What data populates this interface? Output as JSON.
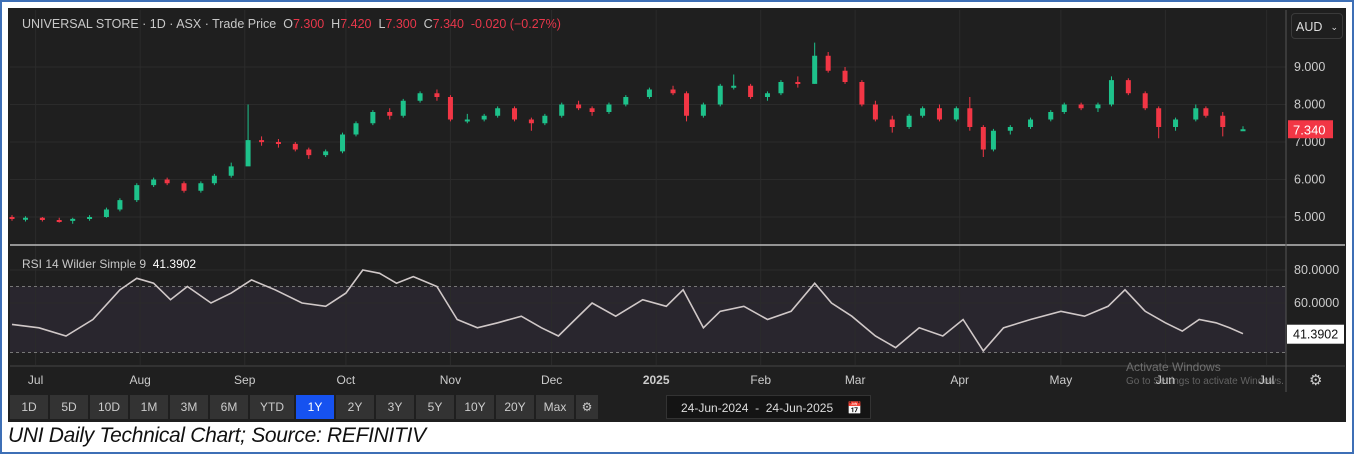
{
  "header": {
    "symbol": "UNIVERSAL STORE · 1D · ASX · Trade Price",
    "o_label": "O",
    "o": "7.300",
    "h_label": "H",
    "h": "7.420",
    "l_label": "L",
    "l": "7.300",
    "c_label": "C",
    "c": "7.340",
    "change": "-0.020 (−0.27%)"
  },
  "currency": "AUD",
  "rsi": {
    "label": "RSI 14 Wilder Simple 9",
    "value": "41.3902"
  },
  "colors": {
    "up": "#1ec28b",
    "down": "#f23645",
    "rsi_line": "#d0c8c8",
    "active": "#1652f0",
    "background": "#1f1f1f"
  },
  "toolbar": {
    "ranges": [
      "1D",
      "5D",
      "10D",
      "1M",
      "3M",
      "6M",
      "YTD",
      "1Y",
      "2Y",
      "3Y",
      "5Y",
      "10Y",
      "20Y",
      "Max"
    ],
    "active": "1Y",
    "date_from": "24-Jun-2024",
    "date_to": "24-Jun-2025",
    "separator": "-"
  },
  "watermark": {
    "line1": "Activate Windows",
    "line2": "Go to Settings to activate Windows."
  },
  "caption": "UNI Daily Technical Chart; Source: REFINITIV",
  "chart_data": [
    {
      "type": "candlestick",
      "title": "UNIVERSAL STORE · 1D · ASX · Trade Price",
      "x_range": [
        "2024-06-24",
        "2025-07-08"
      ],
      "x_ticks": [
        [
          "2024-07-01",
          "Jul"
        ],
        [
          "2024-08-01",
          "Aug"
        ],
        [
          "2024-09-01",
          "Sep"
        ],
        [
          "2024-10-01",
          "Oct"
        ],
        [
          "2024-11-01",
          "Nov"
        ],
        [
          "2024-12-01",
          "Dec"
        ],
        [
          "2025-01-01",
          "2025"
        ],
        [
          "2025-02-01",
          "Feb"
        ],
        [
          "2025-03-01",
          "Mar"
        ],
        [
          "2025-04-01",
          "Apr"
        ],
        [
          "2025-05-01",
          "May"
        ],
        [
          "2025-06-01",
          "Jun"
        ],
        [
          "2025-07-01",
          "Jul"
        ]
      ],
      "y_ticks": [
        "9.000",
        "8.000",
        "7.000",
        "6.000",
        "5.000"
      ],
      "y_range": [
        4.3,
        10.6
      ],
      "grid": true,
      "last_price": "7.340",
      "candles_fields": [
        "date",
        "open",
        "high",
        "low",
        "close"
      ],
      "candles": [
        [
          "2024-06-24",
          5.0,
          5.05,
          4.9,
          4.95
        ],
        [
          "2024-06-28",
          4.95,
          5.02,
          4.88,
          4.98
        ],
        [
          "2024-07-03",
          4.98,
          5.0,
          4.88,
          4.92
        ],
        [
          "2024-07-08",
          4.92,
          4.98,
          4.85,
          4.9
        ],
        [
          "2024-07-12",
          4.9,
          4.98,
          4.82,
          4.95
        ],
        [
          "2024-07-17",
          4.95,
          5.05,
          4.9,
          5.0
        ],
        [
          "2024-07-22",
          5.0,
          5.25,
          4.98,
          5.2
        ],
        [
          "2024-07-26",
          5.2,
          5.5,
          5.15,
          5.45
        ],
        [
          "2024-07-31",
          5.45,
          5.9,
          5.4,
          5.85
        ],
        [
          "2024-08-05",
          5.85,
          6.05,
          5.8,
          6.0
        ],
        [
          "2024-08-09",
          6.0,
          6.05,
          5.85,
          5.9
        ],
        [
          "2024-08-14",
          5.9,
          5.95,
          5.65,
          5.7
        ],
        [
          "2024-08-19",
          5.7,
          5.95,
          5.65,
          5.9
        ],
        [
          "2024-08-23",
          5.9,
          6.15,
          5.85,
          6.1
        ],
        [
          "2024-08-28",
          6.1,
          6.45,
          6.05,
          6.35
        ],
        [
          "2024-09-02",
          6.35,
          8.0,
          6.4,
          7.05
        ],
        [
          "2024-09-06",
          7.05,
          7.15,
          6.9,
          7.0
        ],
        [
          "2024-09-11",
          7.0,
          7.08,
          6.85,
          6.95
        ],
        [
          "2024-09-16",
          6.95,
          7.0,
          6.75,
          6.8
        ],
        [
          "2024-09-20",
          6.8,
          6.85,
          6.55,
          6.65
        ],
        [
          "2024-09-25",
          6.65,
          6.8,
          6.6,
          6.75
        ],
        [
          "2024-09-30",
          6.75,
          7.25,
          6.7,
          7.2
        ],
        [
          "2024-10-04",
          7.2,
          7.55,
          7.15,
          7.5
        ],
        [
          "2024-10-09",
          7.5,
          7.85,
          7.45,
          7.8
        ],
        [
          "2024-10-14",
          7.8,
          7.9,
          7.6,
          7.7
        ],
        [
          "2024-10-18",
          7.7,
          8.15,
          7.65,
          8.1
        ],
        [
          "2024-10-23",
          8.1,
          8.35,
          8.05,
          8.3
        ],
        [
          "2024-10-28",
          8.3,
          8.4,
          8.1,
          8.2
        ],
        [
          "2024-11-01",
          8.2,
          8.25,
          7.55,
          7.6
        ],
        [
          "2024-11-06",
          7.6,
          7.75,
          7.5,
          7.6
        ],
        [
          "2024-11-11",
          7.6,
          7.75,
          7.55,
          7.7
        ],
        [
          "2024-11-15",
          7.7,
          7.95,
          7.65,
          7.9
        ],
        [
          "2024-11-20",
          7.9,
          7.95,
          7.55,
          7.6
        ],
        [
          "2024-11-25",
          7.6,
          7.65,
          7.3,
          7.5
        ],
        [
          "2024-11-29",
          7.5,
          7.75,
          7.45,
          7.7
        ],
        [
          "2024-12-04",
          7.7,
          8.05,
          7.65,
          8.0
        ],
        [
          "2024-12-09",
          8.0,
          8.1,
          7.85,
          7.9
        ],
        [
          "2024-12-13",
          7.9,
          7.95,
          7.7,
          7.8
        ],
        [
          "2024-12-18",
          7.8,
          8.05,
          7.75,
          8.0
        ],
        [
          "2024-12-23",
          8.0,
          8.25,
          7.95,
          8.2
        ],
        [
          "2024-12-30",
          8.2,
          8.45,
          8.15,
          8.4
        ],
        [
          "2025-01-06",
          8.4,
          8.5,
          8.25,
          8.3
        ],
        [
          "2025-01-10",
          8.3,
          8.35,
          7.55,
          7.7
        ],
        [
          "2025-01-15",
          7.7,
          8.05,
          7.65,
          8.0
        ],
        [
          "2025-01-20",
          8.0,
          8.55,
          7.95,
          8.5
        ],
        [
          "2025-01-24",
          8.5,
          8.8,
          8.4,
          8.5
        ],
        [
          "2025-01-29",
          8.5,
          8.55,
          8.15,
          8.2
        ],
        [
          "2025-02-03",
          8.2,
          8.35,
          8.1,
          8.3
        ],
        [
          "2025-02-07",
          8.3,
          8.65,
          8.25,
          8.6
        ],
        [
          "2025-02-12",
          8.6,
          8.75,
          8.45,
          8.55
        ],
        [
          "2025-02-17",
          8.55,
          9.65,
          8.55,
          9.3
        ],
        [
          "2025-02-21",
          9.3,
          9.4,
          8.85,
          8.9
        ],
        [
          "2025-02-26",
          8.9,
          9.0,
          8.55,
          8.6
        ],
        [
          "2025-03-03",
          8.6,
          8.65,
          7.95,
          8.0
        ],
        [
          "2025-03-07",
          8.0,
          8.1,
          7.55,
          7.6
        ],
        [
          "2025-03-12",
          7.6,
          7.7,
          7.25,
          7.4
        ],
        [
          "2025-03-17",
          7.4,
          7.75,
          7.35,
          7.7
        ],
        [
          "2025-03-21",
          7.7,
          7.95,
          7.65,
          7.9
        ],
        [
          "2025-03-26",
          7.9,
          8.0,
          7.55,
          7.6
        ],
        [
          "2025-03-31",
          7.6,
          7.95,
          7.55,
          7.9
        ],
        [
          "2025-04-04",
          7.9,
          8.2,
          7.3,
          7.4
        ],
        [
          "2025-04-08",
          7.4,
          7.45,
          6.6,
          6.8
        ],
        [
          "2025-04-11",
          6.8,
          7.35,
          6.75,
          7.3
        ],
        [
          "2025-04-16",
          7.3,
          7.45,
          7.2,
          7.4
        ],
        [
          "2025-04-22",
          7.4,
          7.65,
          7.35,
          7.6
        ],
        [
          "2025-04-28",
          7.6,
          7.85,
          7.55,
          7.8
        ],
        [
          "2025-05-02",
          7.8,
          8.05,
          7.75,
          8.0
        ],
        [
          "2025-05-07",
          8.0,
          8.05,
          7.85,
          7.9
        ],
        [
          "2025-05-12",
          7.9,
          8.05,
          7.8,
          8.0
        ],
        [
          "2025-05-16",
          8.0,
          8.75,
          7.95,
          8.65
        ],
        [
          "2025-05-21",
          8.65,
          8.7,
          8.25,
          8.3
        ],
        [
          "2025-05-26",
          8.3,
          8.35,
          7.85,
          7.9
        ],
        [
          "2025-05-30",
          7.9,
          7.95,
          7.1,
          7.4
        ],
        [
          "2025-06-04",
          7.4,
          7.65,
          7.3,
          7.6
        ],
        [
          "2025-06-10",
          7.6,
          8.0,
          7.55,
          7.9
        ],
        [
          "2025-06-13",
          7.9,
          7.95,
          7.65,
          7.7
        ],
        [
          "2025-06-18",
          7.7,
          7.8,
          7.15,
          7.4
        ],
        [
          "2025-06-24",
          7.3,
          7.42,
          7.3,
          7.34
        ]
      ]
    },
    {
      "type": "line",
      "title": "RSI 14 Wilder Simple 9",
      "y_ticks": [
        "80.0000",
        "60.0000"
      ],
      "y_range": [
        22,
        95
      ],
      "bands": [
        30,
        70
      ],
      "last_value": "41.3902",
      "points_fields": [
        "date",
        "rsi"
      ],
      "points": [
        [
          "2024-06-24",
          47
        ],
        [
          "2024-07-02",
          45
        ],
        [
          "2024-07-10",
          40
        ],
        [
          "2024-07-18",
          50
        ],
        [
          "2024-07-26",
          68
        ],
        [
          "2024-07-31",
          75
        ],
        [
          "2024-08-05",
          72
        ],
        [
          "2024-08-10",
          62
        ],
        [
          "2024-08-15",
          70
        ],
        [
          "2024-08-22",
          60
        ],
        [
          "2024-08-28",
          66
        ],
        [
          "2024-09-03",
          74
        ],
        [
          "2024-09-10",
          68
        ],
        [
          "2024-09-18",
          60
        ],
        [
          "2024-09-25",
          58
        ],
        [
          "2024-10-01",
          66
        ],
        [
          "2024-10-06",
          80
        ],
        [
          "2024-10-11",
          78
        ],
        [
          "2024-10-16",
          72
        ],
        [
          "2024-10-21",
          76
        ],
        [
          "2024-10-28",
          70
        ],
        [
          "2024-11-03",
          50
        ],
        [
          "2024-11-09",
          45
        ],
        [
          "2024-11-15",
          48
        ],
        [
          "2024-11-22",
          52
        ],
        [
          "2024-11-28",
          45
        ],
        [
          "2024-12-03",
          40
        ],
        [
          "2024-12-08",
          50
        ],
        [
          "2024-12-13",
          60
        ],
        [
          "2024-12-20",
          52
        ],
        [
          "2024-12-28",
          62
        ],
        [
          "2025-01-04",
          58
        ],
        [
          "2025-01-09",
          68
        ],
        [
          "2025-01-15",
          45
        ],
        [
          "2025-01-20",
          55
        ],
        [
          "2025-01-27",
          58
        ],
        [
          "2025-02-03",
          50
        ],
        [
          "2025-02-10",
          55
        ],
        [
          "2025-02-17",
          72
        ],
        [
          "2025-02-22",
          60
        ],
        [
          "2025-02-28",
          52
        ],
        [
          "2025-03-07",
          40
        ],
        [
          "2025-03-13",
          33
        ],
        [
          "2025-03-20",
          45
        ],
        [
          "2025-03-27",
          40
        ],
        [
          "2025-04-02",
          50
        ],
        [
          "2025-04-08",
          31
        ],
        [
          "2025-04-14",
          45
        ],
        [
          "2025-04-22",
          50
        ],
        [
          "2025-05-01",
          55
        ],
        [
          "2025-05-08",
          52
        ],
        [
          "2025-05-15",
          58
        ],
        [
          "2025-05-20",
          68
        ],
        [
          "2025-05-26",
          55
        ],
        [
          "2025-06-01",
          48
        ],
        [
          "2025-06-06",
          43
        ],
        [
          "2025-06-11",
          50
        ],
        [
          "2025-06-16",
          48
        ],
        [
          "2025-06-20",
          45
        ],
        [
          "2025-06-24",
          41.39
        ]
      ]
    }
  ]
}
